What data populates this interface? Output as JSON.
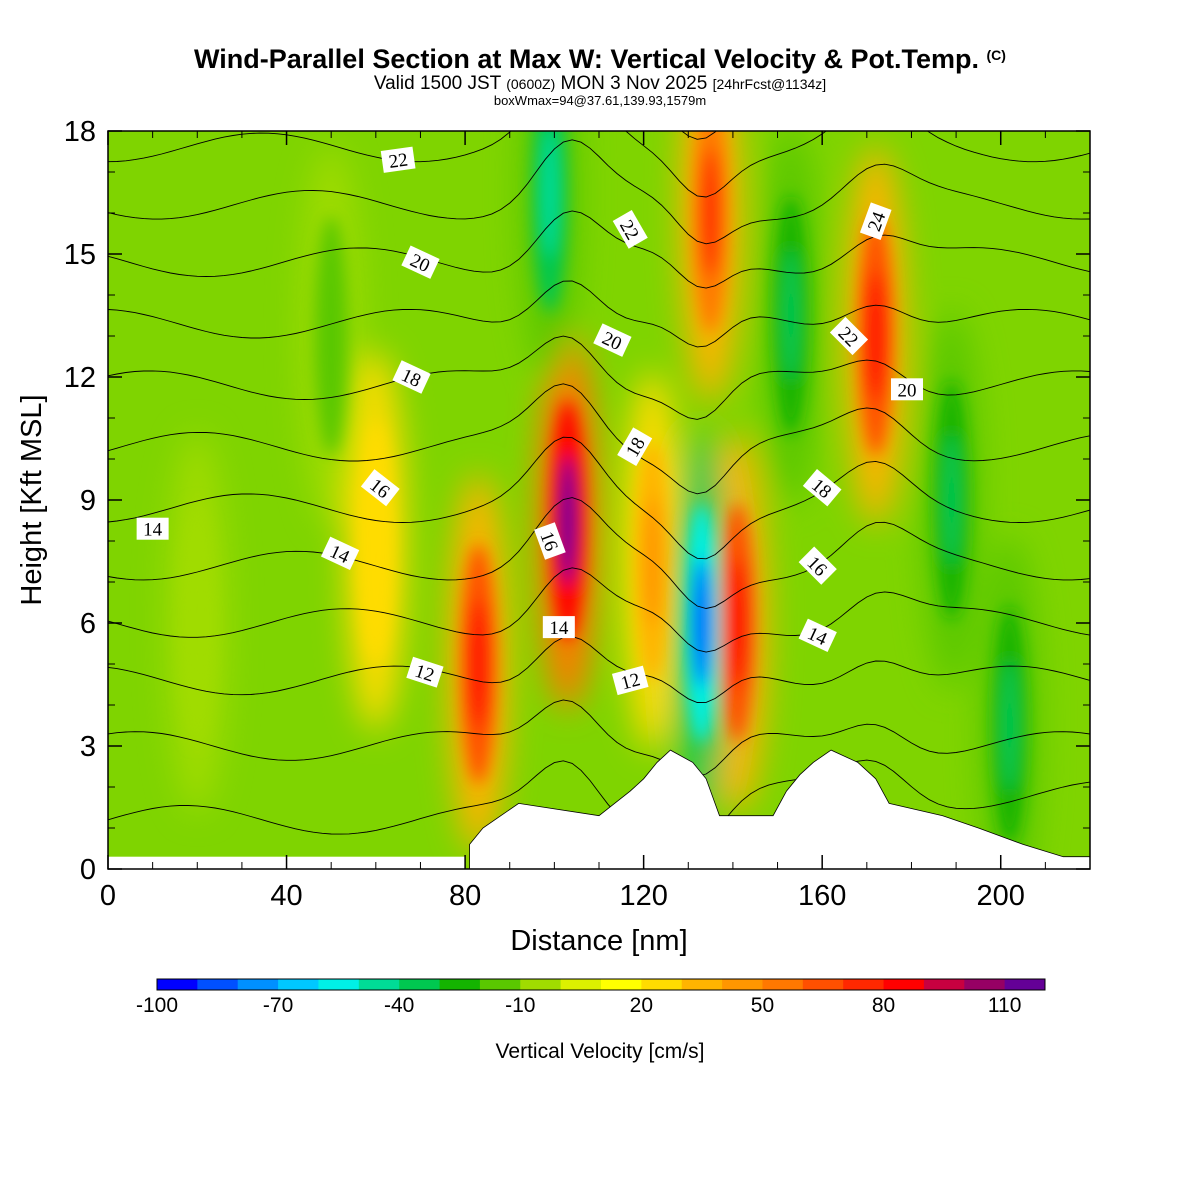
{
  "title": "Wind-Parallel Section at Max W: Vertical Velocity & Pot.Temp.",
  "title_suffix": "(C)",
  "subtitle_part1": "Valid 1500 JST",
  "subtitle_part2": "(0600Z)",
  "subtitle_part3": "MON 3 Nov 2025",
  "subtitle_part4": "[24hrFcst@1134z]",
  "subtitle_line3": "boxWmax=94@37.61,139.93,1579m",
  "chart_data": {
    "type": "heatmap",
    "xlabel": "Distance [nm]",
    "ylabel": "Height [Kft MSL]",
    "xlim": [
      0,
      220
    ],
    "ylim": [
      0,
      18
    ],
    "xticks": [
      0,
      40,
      80,
      120,
      160,
      200
    ],
    "yticks": [
      0,
      3,
      6,
      9,
      12,
      15,
      18
    ],
    "colorbar": {
      "label": "Vertical Velocity [cm/s]",
      "tick_labels": [
        "-100",
        "-70",
        "-40",
        "-10",
        "20",
        "50",
        "80",
        "110"
      ],
      "colors": [
        "#0000ff",
        "#0050ff",
        "#0090ff",
        "#00c8ff",
        "#00f0e6",
        "#00dc96",
        "#00c850",
        "#14b400",
        "#5ac800",
        "#a0dc00",
        "#dcf000",
        "#ffff00",
        "#ffdc00",
        "#ffb400",
        "#ff9600",
        "#ff7800",
        "#ff5000",
        "#ff2800",
        "#ff0000",
        "#c80040",
        "#960064",
        "#640096"
      ],
      "bounds": [
        -110,
        120
      ]
    },
    "updrafts": [
      {
        "x": 83,
        "z": 5.0,
        "w": 80
      },
      {
        "x": 103,
        "z": 8.5,
        "w": 115
      },
      {
        "x": 122,
        "z": 7.5,
        "w": 45
      },
      {
        "x": 141,
        "z": 6.0,
        "w": 80
      },
      {
        "x": 135,
        "z": 16.0,
        "w": 75
      },
      {
        "x": 172,
        "z": 13.0,
        "w": 80
      },
      {
        "x": 60,
        "z": 8.0,
        "w": 25
      }
    ],
    "downdrafts": [
      {
        "x": 133,
        "z": 6.0,
        "w": -90
      },
      {
        "x": 99,
        "z": 16.5,
        "w": -50
      },
      {
        "x": 153,
        "z": 13.5,
        "w": -45
      },
      {
        "x": 189,
        "z": 9.0,
        "w": -45
      },
      {
        "x": 202,
        "z": 3.5,
        "w": -45
      },
      {
        "x": 50,
        "z": 13.0,
        "w": -25
      },
      {
        "x": 20,
        "z": 6.0,
        "w": -15
      }
    ],
    "terrain": [
      {
        "x": 81,
        "z": 0.6
      },
      {
        "x": 84,
        "z": 1.0
      },
      {
        "x": 88,
        "z": 1.3
      },
      {
        "x": 92,
        "z": 1.6
      },
      {
        "x": 110,
        "z": 1.3
      },
      {
        "x": 117,
        "z": 1.9
      },
      {
        "x": 120,
        "z": 2.2
      },
      {
        "x": 123,
        "z": 2.6
      },
      {
        "x": 126,
        "z": 2.9
      },
      {
        "x": 131,
        "z": 2.6
      },
      {
        "x": 134,
        "z": 2.2
      },
      {
        "x": 137,
        "z": 1.3
      },
      {
        "x": 149,
        "z": 1.3
      },
      {
        "x": 152,
        "z": 1.9
      },
      {
        "x": 155,
        "z": 2.3
      },
      {
        "x": 158,
        "z": 2.6
      },
      {
        "x": 162,
        "z": 2.9
      },
      {
        "x": 168,
        "z": 2.6
      },
      {
        "x": 172,
        "z": 2.2
      },
      {
        "x": 175,
        "z": 1.6
      },
      {
        "x": 187,
        "z": 1.3
      },
      {
        "x": 195,
        "z": 1.0
      },
      {
        "x": 205,
        "z": 0.6
      },
      {
        "x": 214,
        "z": 0.3
      }
    ],
    "isentropes": {
      "levels": [
        12,
        14,
        16,
        18,
        20,
        22,
        24
      ],
      "labels": [
        {
          "text": "22",
          "x": 65,
          "z": 17.3,
          "angle": -8
        },
        {
          "text": "20",
          "x": 70,
          "z": 14.8,
          "angle": 25
        },
        {
          "text": "18",
          "x": 68,
          "z": 12.0,
          "angle": 25
        },
        {
          "text": "16",
          "x": 61,
          "z": 9.3,
          "angle": 38
        },
        {
          "text": "14",
          "x": 10,
          "z": 8.3,
          "angle": 0
        },
        {
          "text": "14",
          "x": 52,
          "z": 7.7,
          "angle": 25
        },
        {
          "text": "12",
          "x": 71,
          "z": 4.8,
          "angle": 18
        },
        {
          "text": "16",
          "x": 99,
          "z": 8.0,
          "angle": 70
        },
        {
          "text": "14",
          "x": 101,
          "z": 5.9,
          "angle": 0
        },
        {
          "text": "12",
          "x": 117,
          "z": 4.6,
          "angle": -15
        },
        {
          "text": "18",
          "x": 118,
          "z": 10.3,
          "angle": -60
        },
        {
          "text": "20",
          "x": 113,
          "z": 12.9,
          "angle": 25
        },
        {
          "text": "22",
          "x": 117,
          "z": 15.6,
          "angle": 60
        },
        {
          "text": "24",
          "x": 172,
          "z": 15.8,
          "angle": -70
        },
        {
          "text": "22",
          "x": 166,
          "z": 13.0,
          "angle": 45
        },
        {
          "text": "20",
          "x": 179,
          "z": 11.7,
          "angle": 0
        },
        {
          "text": "18",
          "x": 160,
          "z": 9.3,
          "angle": 40
        },
        {
          "text": "16",
          "x": 159,
          "z": 7.4,
          "angle": 45
        },
        {
          "text": "14",
          "x": 159,
          "z": 5.7,
          "angle": 25
        }
      ]
    }
  }
}
